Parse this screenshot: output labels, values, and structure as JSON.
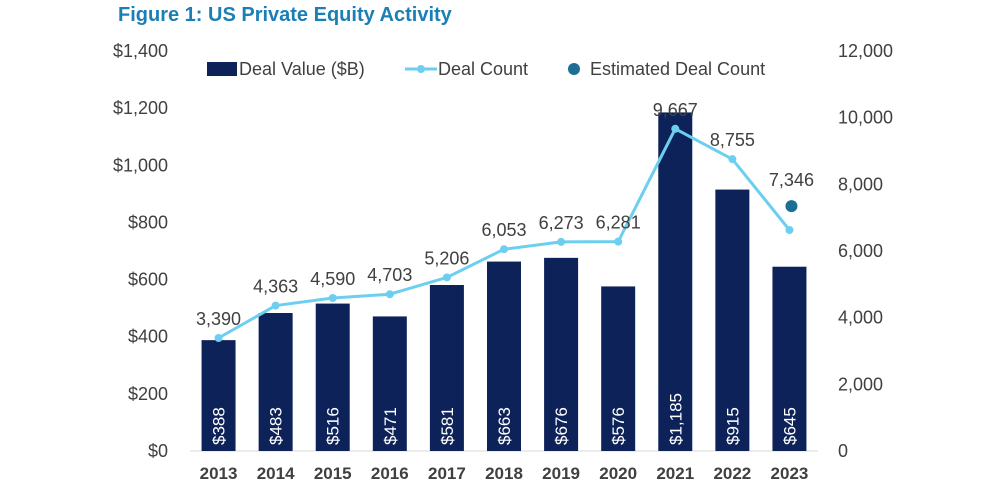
{
  "page": {
    "title": "Figure 1: US Private Equity Activity"
  },
  "colors": {
    "bar": "#0d2259",
    "line": "#6dcff0",
    "estimate": "#1d6e94",
    "title": "#1a7fb5",
    "axis_text": "#404040",
    "bar_label": "#ffffff"
  },
  "chart_data": {
    "type": "bar",
    "title": "Figure 1: US Private Equity Activity",
    "categories": [
      "2013",
      "2014",
      "2015",
      "2016",
      "2017",
      "2018",
      "2019",
      "2020",
      "2021",
      "2022",
      "2023"
    ],
    "series": [
      {
        "name": "Deal Value ($B)",
        "type": "bar",
        "axis": "left",
        "values": [
          388,
          483,
          516,
          471,
          581,
          663,
          676,
          576,
          1185,
          915,
          645
        ],
        "labels": [
          "$388",
          "$483",
          "$516",
          "$471",
          "$581",
          "$663",
          "$676",
          "$576",
          "$1,185",
          "$915",
          "$645"
        ]
      },
      {
        "name": "Deal Count",
        "type": "line",
        "axis": "right",
        "values": [
          3390,
          4363,
          4590,
          4703,
          5206,
          6053,
          6273,
          6281,
          9667,
          8755,
          6630
        ],
        "labels": [
          "3,390",
          "4,363",
          "4,590",
          "4,703",
          "5,206",
          "6,053",
          "6,273",
          "6,281",
          "9,667",
          "8,755",
          ""
        ]
      },
      {
        "name": "Estimated Deal Count",
        "type": "scatter",
        "axis": "right",
        "points": [
          {
            "category": "2023",
            "value": 7346,
            "label": "7,346"
          }
        ]
      }
    ],
    "y_left": {
      "min": 0,
      "max": 1400,
      "ticks": [
        "$0",
        "$200",
        "$400",
        "$600",
        "$800",
        "$1,000",
        "$1,200",
        "$1,400"
      ],
      "tick_values": [
        0,
        200,
        400,
        600,
        800,
        1000,
        1200,
        1400
      ]
    },
    "y_right": {
      "min": 0,
      "max": 12000,
      "ticks": [
        "0",
        "2,000",
        "4,000",
        "6,000",
        "8,000",
        "10,000",
        "12,000"
      ],
      "tick_values": [
        0,
        2000,
        4000,
        6000,
        8000,
        10000,
        12000
      ]
    },
    "legend": {
      "position": "top",
      "items": [
        "Deal Value ($B)",
        "Deal Count",
        "Estimated Deal Count"
      ]
    },
    "grid": false
  }
}
